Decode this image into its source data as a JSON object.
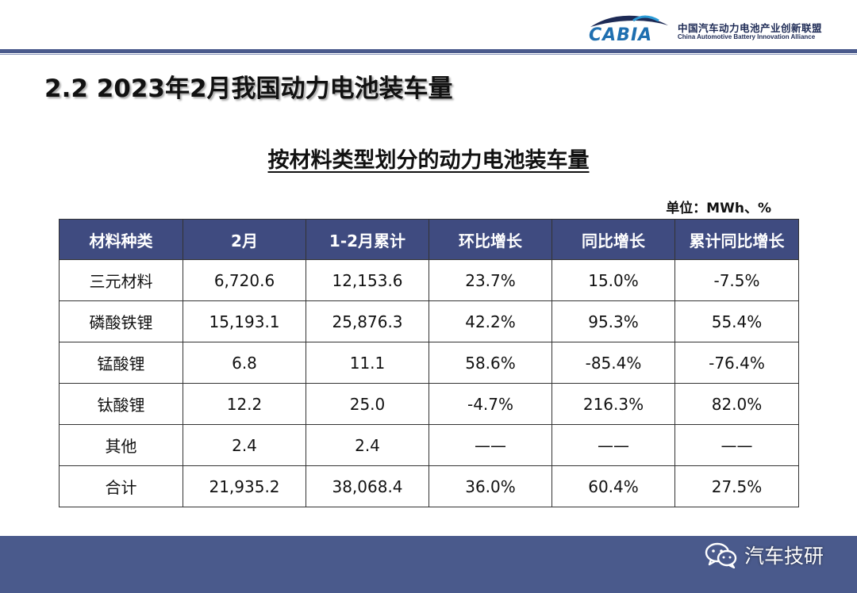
{
  "header": {
    "logo_word": "CABIA",
    "logo_cn": "中国汽车动力电池产业创新联盟",
    "logo_en": "China Automotive Battery Innovation Alliance"
  },
  "page_title": "2.2 2023年2月我国动力电池装车量",
  "subtitle": "按材料类型划分的动力电池装车量",
  "unit": "单位：MWh、%",
  "table": {
    "columns": [
      "材料种类",
      "2月",
      "1-2月累计",
      "环比增长",
      "同比增长",
      "累计同比增长"
    ],
    "rows": [
      [
        "三元材料",
        "6,720.6",
        "12,153.6",
        "23.7%",
        "15.0%",
        "-7.5%"
      ],
      [
        "磷酸铁锂",
        "15,193.1",
        "25,876.3",
        "42.2%",
        "95.3%",
        "55.4%"
      ],
      [
        "锰酸锂",
        "6.8",
        "11.1",
        "58.6%",
        "-85.4%",
        "-76.4%"
      ],
      [
        "钛酸锂",
        "12.2",
        "25.0",
        "-4.7%",
        "216.3%",
        "82.0%"
      ],
      [
        "其他",
        "2.4",
        "2.4",
        "——",
        "——",
        "——"
      ],
      [
        "合计",
        "21,935.2",
        "38,068.4",
        "36.0%",
        "60.4%",
        "27.5%"
      ]
    ]
  },
  "watermark": {
    "icon": "wechat-icon",
    "text": "汽车技研"
  },
  "colors": {
    "header_bar": "#4a5a8c",
    "table_header": "#3f4b80",
    "logo_blue": "#1f6fb0"
  }
}
